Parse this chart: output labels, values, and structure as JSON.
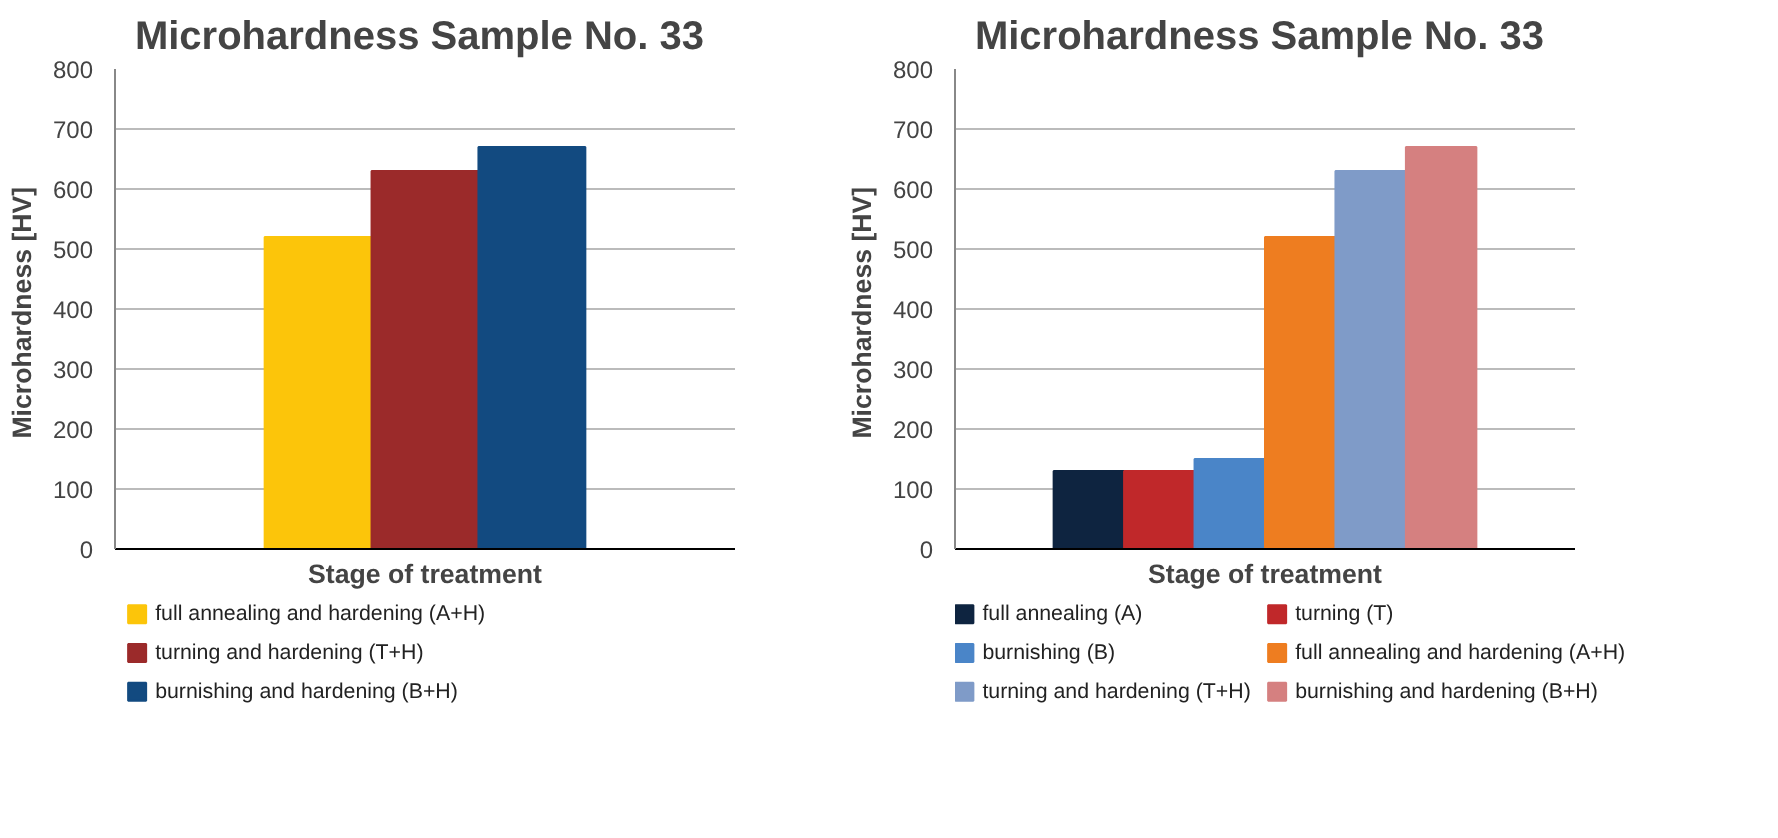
{
  "chart_data": [
    {
      "type": "bar",
      "title": "Microhardness  Sample No. 33",
      "xlabel": "Stage of treatment",
      "ylabel": "Microhardness  [HV]",
      "categories": [
        null
      ],
      "ylim": [
        0,
        800
      ],
      "yticks": [
        0,
        100,
        200,
        300,
        400,
        500,
        600,
        700,
        800
      ],
      "grid": "y",
      "legend": "bottom",
      "series": [
        {
          "name": "full annealing and hardening (A+H)",
          "color": "#fcc50a",
          "values": [
            520
          ]
        },
        {
          "name": "turning and hardening (T+H)",
          "color": "#9b2a2a",
          "values": [
            630
          ]
        },
        {
          "name": "burnishing and hardening (B+H)",
          "color": "#124a80",
          "values": [
            670
          ]
        }
      ]
    },
    {
      "type": "bar",
      "title": "Microhardness  Sample No. 33",
      "xlabel": "Stage of treatment",
      "ylabel": "Microhardness  [HV]",
      "categories": [
        null
      ],
      "ylim": [
        0,
        800
      ],
      "yticks": [
        0,
        100,
        200,
        300,
        400,
        500,
        600,
        700,
        800
      ],
      "grid": "y",
      "legend": "bottom",
      "series": [
        {
          "name": "full annealing (A)",
          "color": "#0e2440",
          "values": [
            130
          ]
        },
        {
          "name": "turning (T)",
          "color": "#c0282a",
          "values": [
            130
          ]
        },
        {
          "name": "burnishing (B)",
          "color": "#4a85c8",
          "values": [
            150
          ]
        },
        {
          "name": "full annealing and hardening (A+H)",
          "color": "#ee7d20",
          "values": [
            520
          ]
        },
        {
          "name": "turning and hardening (T+H)",
          "color": "#7f9bc8",
          "values": [
            630
          ]
        },
        {
          "name": "burnishing and hardening (B+H)",
          "color": "#d58080",
          "values": [
            670
          ]
        }
      ]
    }
  ]
}
